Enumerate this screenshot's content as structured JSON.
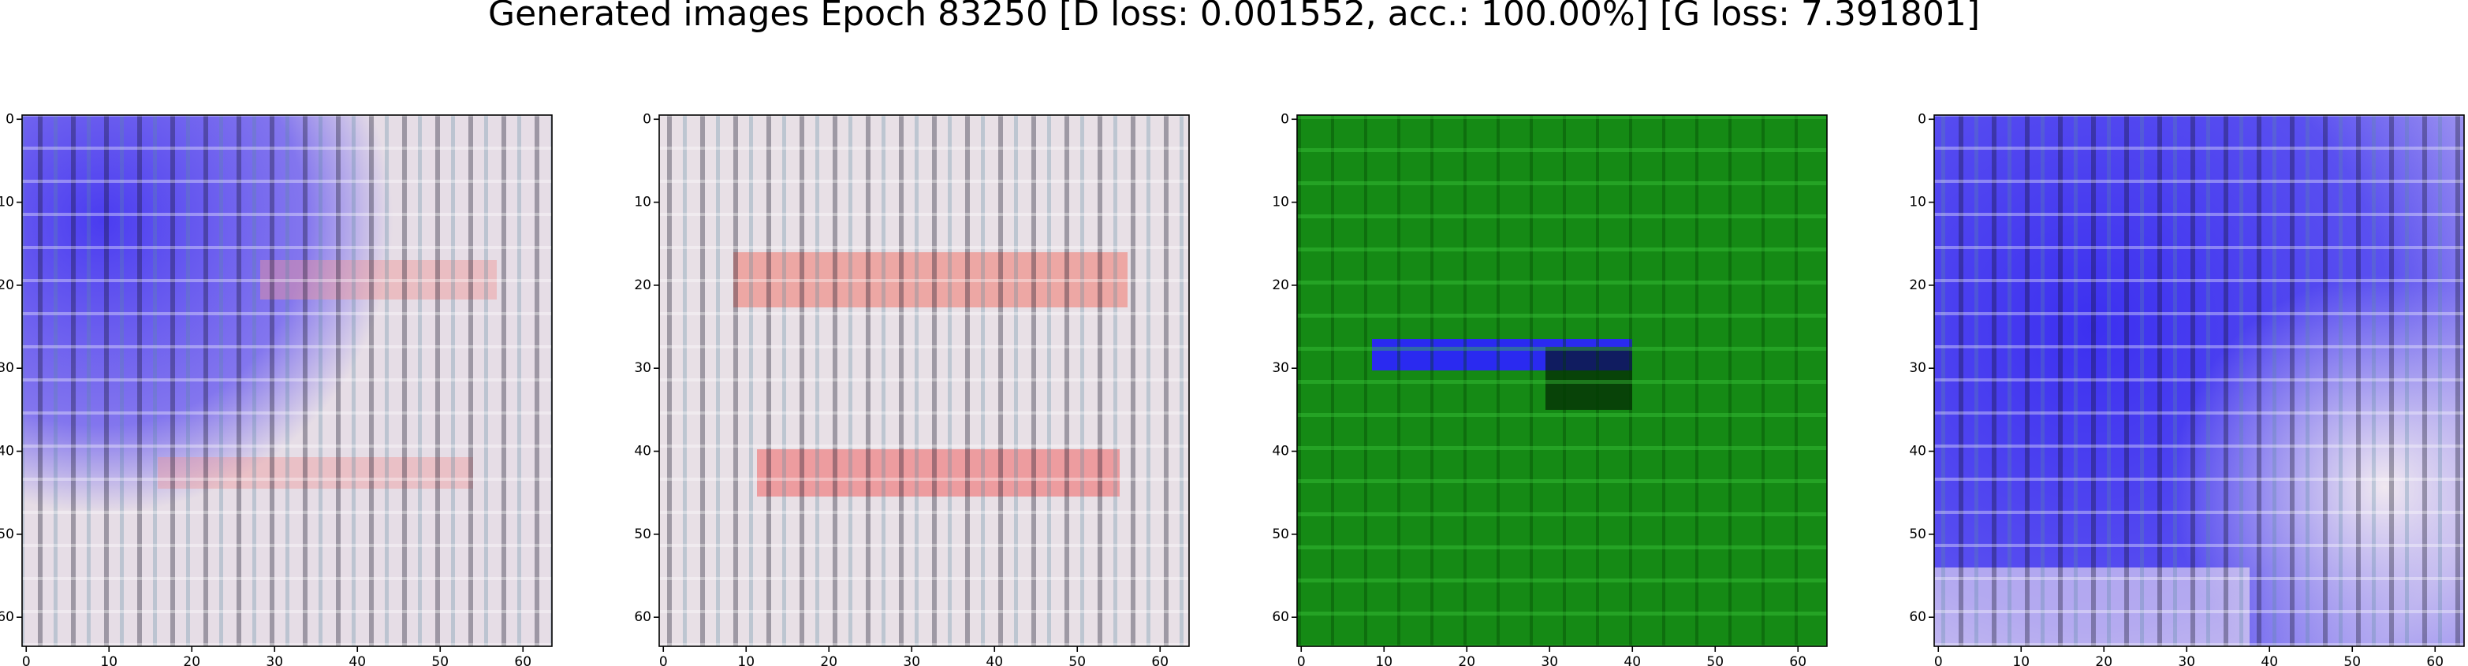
{
  "title": "Generated images Epoch 83250 [D loss: 0.001552, acc.: 100.00%] [G loss: 7.391801]",
  "chart_data": [
    {
      "type": "image",
      "xlim": [
        -0.5,
        63.5
      ],
      "ylim": [
        63.5,
        -0.5
      ],
      "xticks": [
        0,
        10,
        20,
        30,
        40,
        50,
        60
      ],
      "yticks": [
        0,
        10,
        20,
        30,
        40,
        50,
        60
      ]
    },
    {
      "type": "image",
      "xlim": [
        -0.5,
        63.5
      ],
      "ylim": [
        63.5,
        -0.5
      ],
      "xticks": [
        0,
        10,
        20,
        30,
        40,
        50,
        60
      ],
      "yticks": [
        0,
        10,
        20,
        30,
        40,
        50,
        60
      ]
    },
    {
      "type": "image",
      "xlim": [
        -0.5,
        63.5
      ],
      "ylim": [
        63.5,
        -0.5
      ],
      "xticks": [
        0,
        10,
        20,
        30,
        40,
        50,
        60
      ],
      "yticks": [
        0,
        10,
        20,
        30,
        40,
        50,
        60
      ]
    },
    {
      "type": "image",
      "xlim": [
        -0.5,
        63.5
      ],
      "ylim": [
        63.5,
        -0.5
      ],
      "xticks": [
        0,
        10,
        20,
        30,
        40,
        50,
        60
      ],
      "yticks": [
        0,
        10,
        20,
        30,
        40,
        50,
        60
      ]
    }
  ]
}
